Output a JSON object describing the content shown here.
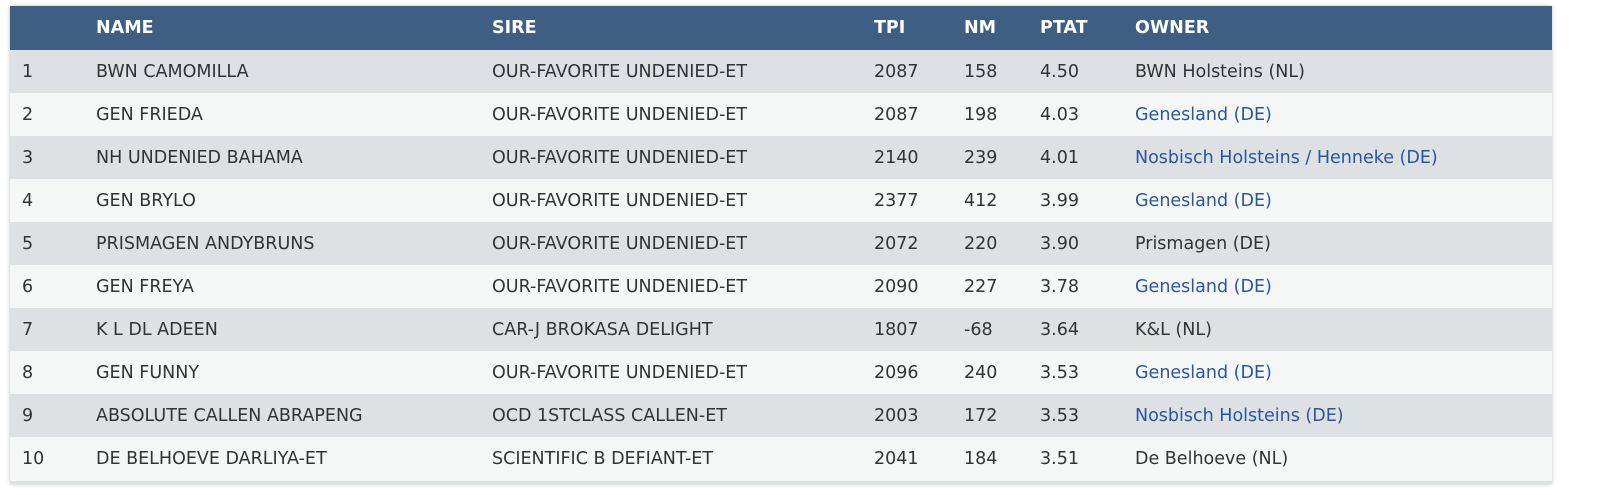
{
  "columns": [
    "",
    "NAME",
    "SIRE",
    "TPI",
    "NM",
    "PTAT",
    "OWNER"
  ],
  "link_color": "#2a56a0",
  "header_color": "#3e5f83",
  "rows": [
    {
      "rank": "1",
      "name": "BWN CAMOMILLA",
      "sire": "OUR-FAVORITE UNDENIED-ET",
      "tpi": "2087",
      "nm": "158",
      "ptat": "4.50",
      "owner": "BWN Holsteins (NL)",
      "owner_link": false
    },
    {
      "rank": "2",
      "name": "GEN FRIEDA",
      "sire": "OUR-FAVORITE UNDENIED-ET",
      "tpi": "2087",
      "nm": "198",
      "ptat": "4.03",
      "owner": "Genesland (DE)",
      "owner_link": true
    },
    {
      "rank": "3",
      "name": "NH UNDENIED BAHAMA",
      "sire": "OUR-FAVORITE UNDENIED-ET",
      "tpi": "2140",
      "nm": "239",
      "ptat": "4.01",
      "owner": "Nosbisch Holsteins / Henneke (DE)",
      "owner_link": true
    },
    {
      "rank": "4",
      "name": "GEN BRYLO",
      "sire": "OUR-FAVORITE UNDENIED-ET",
      "tpi": "2377",
      "nm": "412",
      "ptat": "3.99",
      "owner": "Genesland (DE)",
      "owner_link": true
    },
    {
      "rank": "5",
      "name": "PRISMAGEN ANDYBRUNS",
      "sire": "OUR-FAVORITE UNDENIED-ET",
      "tpi": "2072",
      "nm": "220",
      "ptat": "3.90",
      "owner": "Prismagen (DE)",
      "owner_link": false
    },
    {
      "rank": "6",
      "name": "GEN FREYA",
      "sire": "OUR-FAVORITE UNDENIED-ET",
      "tpi": "2090",
      "nm": "227",
      "ptat": "3.78",
      "owner": "Genesland (DE)",
      "owner_link": true
    },
    {
      "rank": "7",
      "name": "K L DL ADEEN",
      "sire": "CAR-J BROKASA DELIGHT",
      "tpi": "1807",
      "nm": "-68",
      "ptat": "3.64",
      "owner": "K&L (NL)",
      "owner_link": false
    },
    {
      "rank": "8",
      "name": "GEN FUNNY",
      "sire": "OUR-FAVORITE UNDENIED-ET",
      "tpi": "2096",
      "nm": "240",
      "ptat": "3.53",
      "owner": "Genesland (DE)",
      "owner_link": true
    },
    {
      "rank": "9",
      "name": "ABSOLUTE CALLEN ABRAPENG",
      "sire": "OCD 1STCLASS CALLEN-ET",
      "tpi": "2003",
      "nm": "172",
      "ptat": "3.53",
      "owner": "Nosbisch Holsteins (DE)",
      "owner_link": true
    },
    {
      "rank": "10",
      "name": "DE BELHOEVE DARLIYA-ET",
      "sire": "SCIENTIFIC B DEFIANT-ET",
      "tpi": "2041",
      "nm": "184",
      "ptat": "3.51",
      "owner": "De Belhoeve (NL)",
      "owner_link": false
    }
  ]
}
